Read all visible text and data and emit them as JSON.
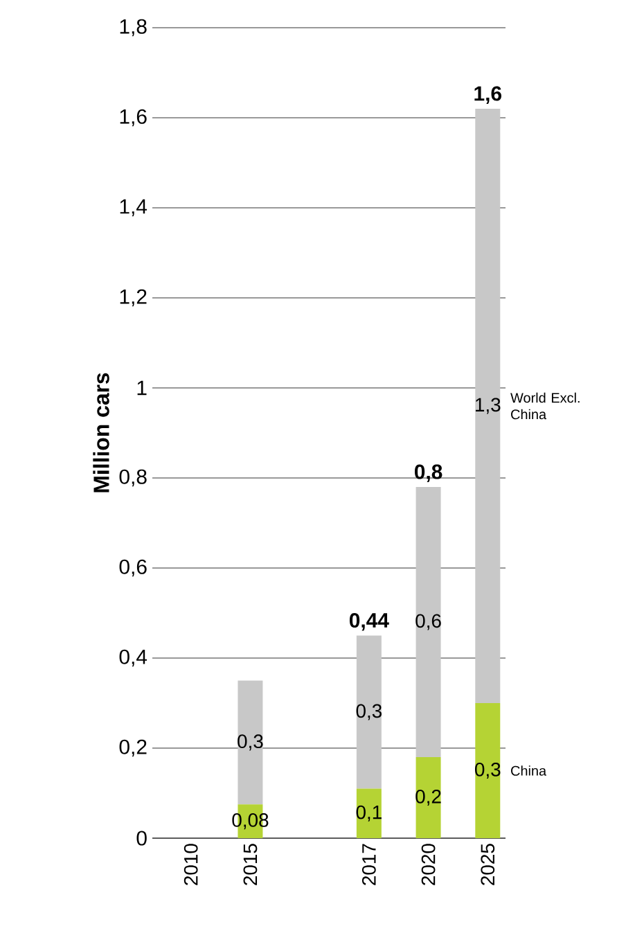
{
  "chart_data": {
    "type": "bar",
    "stacked": true,
    "ylabel": "Million cars",
    "categories": [
      "2010",
      "2015",
      null,
      "2017",
      "2020",
      "2025"
    ],
    "series": [
      {
        "name": "China",
        "color": "#b5d334",
        "values": [
          null,
          0.075,
          null,
          0.11,
          0.18,
          0.3
        ],
        "value_labels": [
          null,
          "0,08",
          null,
          "0,1",
          "0,2",
          "0,3"
        ]
      },
      {
        "name": "World Excl. China",
        "color": "#c8c8c8",
        "values": [
          null,
          0.275,
          null,
          0.34,
          0.6,
          1.32
        ],
        "value_labels": [
          null,
          "0,3",
          null,
          "0,3",
          "0,6",
          "1,3"
        ]
      }
    ],
    "totals": [
      null,
      null,
      null,
      "0,44",
      "0,8",
      "1,6"
    ],
    "ylim": [
      0,
      1.8
    ],
    "yticks": [
      0,
      {
        "value": 0.2,
        "label": "0,2"
      },
      {
        "value": 0.4,
        "label": "0,4"
      },
      {
        "value": 0.6,
        "label": "0,6"
      },
      {
        "value": 0.8,
        "label": "0,8"
      },
      1,
      {
        "value": 1.2,
        "label": "1,2"
      },
      {
        "value": 1.4,
        "label": "1,4"
      },
      {
        "value": 1.6,
        "label": "1,6"
      },
      {
        "value": 1.8,
        "label": "1,8"
      }
    ],
    "grid": "y"
  }
}
